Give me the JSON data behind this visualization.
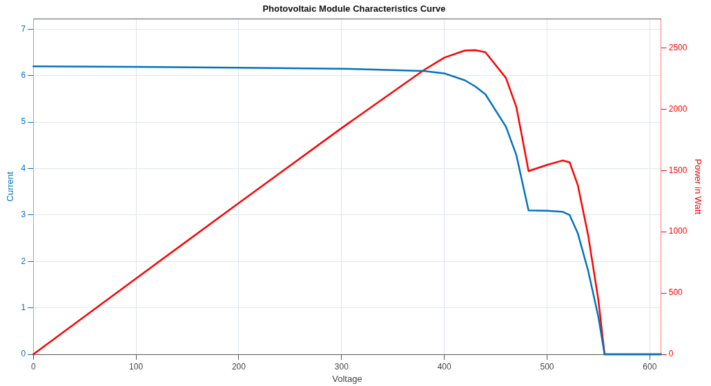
{
  "chart_data": {
    "type": "line",
    "title": "Photovoltaic Module Characteristics Curve",
    "xlabel": "Voltage",
    "ylabel": "Current",
    "y2label": "Power in Watt",
    "x": [
      0,
      100,
      200,
      300,
      380,
      400,
      420,
      430,
      440,
      460,
      470,
      475,
      482,
      500,
      515,
      522,
      530,
      540,
      550,
      556,
      611
    ],
    "series": [
      {
        "color": "#0072bd",
        "values": [
          6.2,
          6.19,
          6.17,
          6.15,
          6.1,
          6.05,
          5.9,
          5.77,
          5.6,
          4.9,
          4.3,
          3.8,
          3.1,
          3.09,
          3.07,
          3.0,
          2.6,
          1.8,
          0.8,
          0,
          0
        ]
      },
      {
        "color": "#ff0000",
        "axis": "y2",
        "values": [
          0,
          619,
          1234,
          1845,
          2318,
          2420,
          2478,
          2481,
          2464,
          2254,
          2021,
          1805,
          1494,
          1545,
          1581,
          1566,
          1378,
          972,
          440,
          0,
          0
        ]
      }
    ],
    "xlim": [
      0,
      611
    ],
    "xticks": [
      0,
      100,
      200,
      300,
      400,
      500,
      600
    ],
    "ylim": [
      0,
      7.22
    ],
    "yticks": [
      0,
      1,
      2,
      3,
      4,
      5,
      6,
      7
    ],
    "y2lim": [
      0,
      2735
    ],
    "y2ticks": [
      0,
      500,
      1000,
      1500,
      2000,
      2500
    ],
    "grid": true,
    "legend": false,
    "marker": "none",
    "line_style": "solid"
  }
}
